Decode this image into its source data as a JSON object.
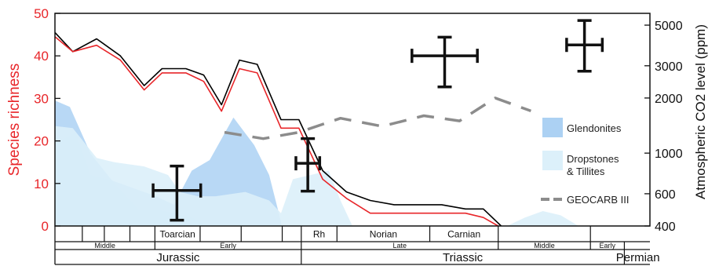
{
  "chart_data": {
    "type": "line",
    "y_left": {
      "label": "Species richness",
      "range": [
        0,
        50
      ],
      "ticks": [
        "0",
        "10",
        "20",
        "30",
        "40",
        "50"
      ],
      "color": "#e8262a"
    },
    "y_right": {
      "label": "Atmospheric CO2 level (ppm)",
      "scale": "log",
      "range": [
        400,
        5800
      ],
      "ticks": [
        "400",
        "600",
        "1000",
        "2000",
        "3000",
        "5000"
      ]
    },
    "x_axis": {
      "direction": "younger-left",
      "range": [
        0,
        100
      ],
      "units": "relative position along geologic time scale"
    },
    "series": [
      {
        "color": "#000000",
        "role": "upper-richness",
        "points": [
          [
            0,
            45.5
          ],
          [
            3,
            41
          ],
          [
            7,
            44
          ],
          [
            11,
            40
          ],
          [
            15,
            33
          ],
          [
            18,
            37
          ],
          [
            22,
            37
          ],
          [
            25,
            35.5
          ],
          [
            28,
            28.5
          ],
          [
            31,
            39
          ],
          [
            34,
            38
          ],
          [
            38,
            25
          ],
          [
            41,
            25
          ],
          [
            45,
            13
          ],
          [
            49,
            8
          ],
          [
            53,
            6
          ],
          [
            57,
            5
          ],
          [
            61,
            5
          ],
          [
            65,
            5
          ],
          [
            69,
            4
          ],
          [
            72,
            4
          ],
          [
            75,
            0
          ]
        ]
      },
      {
        "color": "#e8262a",
        "role": "lower-richness",
        "points": [
          [
            0,
            44.5
          ],
          [
            3,
            41
          ],
          [
            7,
            42.5
          ],
          [
            11,
            39
          ],
          [
            15,
            32
          ],
          [
            18,
            36
          ],
          [
            22,
            36
          ],
          [
            25,
            34
          ],
          [
            28,
            27
          ],
          [
            31,
            37
          ],
          [
            34,
            36
          ],
          [
            38,
            23
          ],
          [
            41,
            23
          ],
          [
            45,
            11
          ],
          [
            49,
            6.5
          ],
          [
            53,
            3
          ],
          [
            57,
            3
          ],
          [
            61,
            3
          ],
          [
            65,
            3
          ],
          [
            69,
            3
          ],
          [
            72,
            2
          ],
          [
            74.5,
            0
          ]
        ]
      },
      {
        "name": "GEOCARB III",
        "color": "#8c8c8c",
        "style": "dashed",
        "axis": "right",
        "points": [
          [
            28.5,
            1300
          ],
          [
            35,
            1200
          ],
          [
            41,
            1300
          ],
          [
            48,
            1550
          ],
          [
            55,
            1400
          ],
          [
            62,
            1600
          ],
          [
            68,
            1500
          ],
          [
            74,
            2000
          ],
          [
            80,
            1700
          ]
        ]
      }
    ],
    "co2_estimates": [
      {
        "x": 20.5,
        "y": 625,
        "y_low": 430,
        "y_high": 850,
        "x_low": 16.5,
        "x_high": 24.5
      },
      {
        "x": 42.5,
        "y": 880,
        "y_low": 620,
        "y_high": 1200,
        "x_low": 40.5,
        "x_high": 44.5
      },
      {
        "x": 65.5,
        "y": 3400,
        "y_low": 2300,
        "y_high": 4300,
        "x_low": 60,
        "x_high": 71
      },
      {
        "x": 89,
        "y": 3900,
        "y_low": 2800,
        "y_high": 5300,
        "x_low": 86,
        "x_high": 92
      }
    ],
    "areas": [
      {
        "role": "glendonites",
        "color": "#acd1f3",
        "points": [
          [
            0,
            0
          ],
          [
            0,
            19.5
          ],
          [
            3.5,
            22
          ],
          [
            6,
            12
          ],
          [
            9,
            11
          ],
          [
            13,
            9
          ],
          [
            17,
            7
          ],
          [
            20,
            5
          ],
          [
            23,
            13
          ],
          [
            26,
            15.5
          ],
          [
            30,
            25.5
          ],
          [
            33.5,
            19
          ],
          [
            36,
            12
          ],
          [
            38,
            1
          ],
          [
            38,
            0
          ]
        ]
      },
      {
        "role": "glendonites",
        "color": "#acd1f3",
        "points": [
          [
            0,
            0
          ],
          [
            0,
            29.5
          ],
          [
            2.5,
            28
          ],
          [
            6,
            17
          ],
          [
            10,
            10
          ],
          [
            14,
            4
          ],
          [
            17,
            4
          ],
          [
            20,
            3
          ],
          [
            23,
            2
          ],
          [
            26,
            0
          ]
        ]
      },
      {
        "role": "dropstones-tillites",
        "color": "#dcf0fa",
        "points": [
          [
            0,
            0
          ],
          [
            0,
            23.5
          ],
          [
            3,
            23
          ],
          [
            7,
            16
          ],
          [
            10,
            15
          ],
          [
            15,
            14
          ],
          [
            19,
            12
          ],
          [
            21,
            8
          ],
          [
            24,
            7
          ],
          [
            27,
            7
          ],
          [
            32,
            8
          ],
          [
            36,
            6
          ],
          [
            38,
            3
          ],
          [
            40,
            11
          ],
          [
            43,
            12
          ],
          [
            46,
            13
          ],
          [
            48,
            6
          ],
          [
            50,
            0
          ]
        ]
      },
      {
        "role": "dropstones-tillites",
        "color": "#dcf0fa",
        "points": [
          [
            76,
            0
          ],
          [
            79,
            2
          ],
          [
            82,
            3.5
          ],
          [
            85,
            2.5
          ],
          [
            88,
            0
          ]
        ]
      }
    ],
    "legend": {
      "placement": "right",
      "items": [
        {
          "label": "Glendonites",
          "color": "#acd1f3",
          "kind": "swatch"
        },
        {
          "label": "Dropstones\n& Tillites",
          "color": "#dcf0fa",
          "kind": "swatch"
        },
        {
          "label": "GEOCARB III",
          "color": "#8c8c8c",
          "kind": "dash"
        }
      ]
    },
    "timescale": {
      "row1": {
        "dividers": [
          4.6,
          8.3,
          12.6,
          16.8,
          24.4,
          31.3,
          38.2,
          41.4,
          47.4,
          63,
          74.5,
          90
        ],
        "labels": [
          {
            "text": "Toarcian",
            "x0": 16.8,
            "x1": 24.4
          },
          {
            "text": "Rh",
            "x0": 41.4,
            "x1": 47.4
          },
          {
            "text": "Norian",
            "x0": 47.4,
            "x1": 63
          },
          {
            "text": "Carnian",
            "x0": 63,
            "x1": 74.5
          }
        ]
      },
      "row2": {
        "dividers": [
          16.8,
          41.4,
          74.5,
          90,
          95.7
        ],
        "labels": [
          {
            "text": "Middle",
            "x0": 0,
            "x1": 16.8
          },
          {
            "text": "Early",
            "x0": 16.8,
            "x1": 41.4
          },
          {
            "text": "Late",
            "x0": 41.4,
            "x1": 74.5
          },
          {
            "text": "Middle",
            "x0": 74.5,
            "x1": 90
          },
          {
            "text": "Early",
            "x0": 90,
            "x1": 95.7
          }
        ]
      },
      "row3": {
        "dividers": [
          41.4,
          95.7
        ],
        "labels": [
          {
            "text": "Jurassic",
            "x0": 0,
            "x1": 41.4
          },
          {
            "text": "Triassic",
            "x0": 41.4,
            "x1": 95.7
          },
          {
            "text": "Permian",
            "x0": 95.7,
            "x1": 104
          }
        ]
      }
    }
  }
}
